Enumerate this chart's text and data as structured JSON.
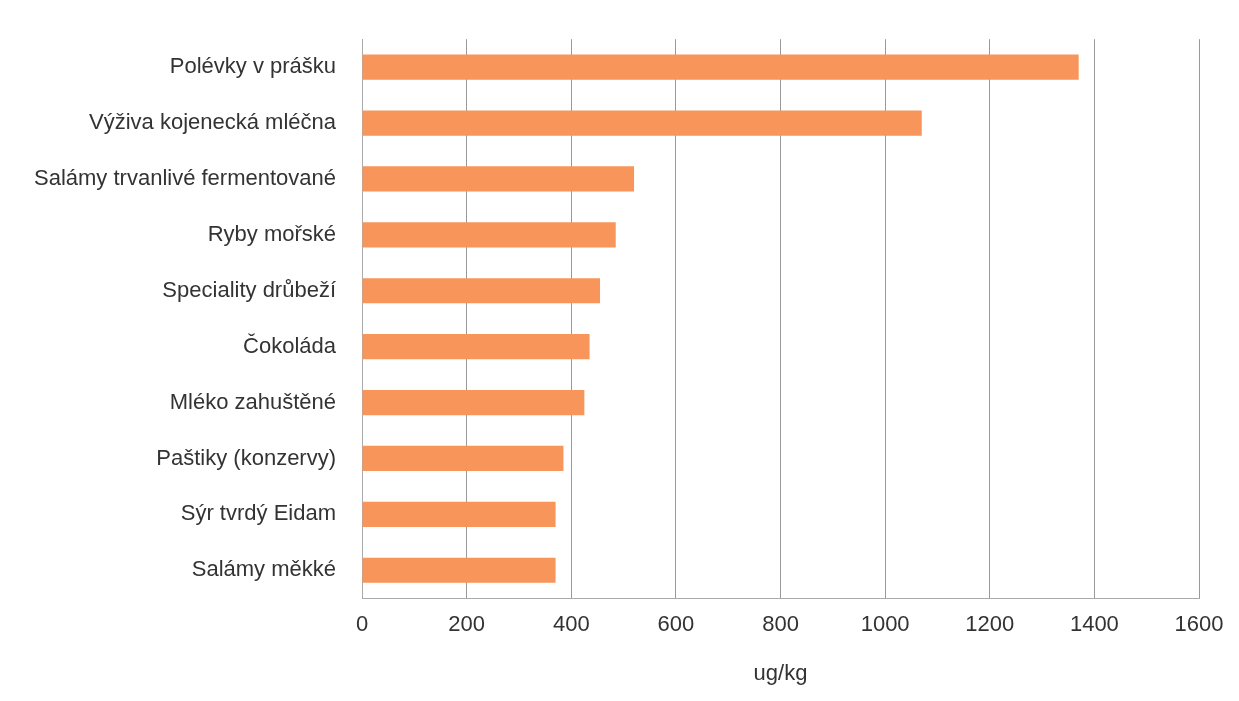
{
  "chart_data": {
    "type": "bar",
    "orientation": "horizontal",
    "xlabel": "ug/kg",
    "categories": [
      "Polévky v prášku",
      "Výživa kojenecká mléčna",
      "Salámy trvanlivé fermentované",
      "Ryby mořské",
      "Speciality drůbeží",
      "Čokoláda",
      "Mléko zahuštěné",
      "Paštiky (konzervy)",
      "Sýr tvrdý Eidam",
      "Salámy měkké"
    ],
    "values": [
      1370,
      1070,
      520,
      485,
      455,
      435,
      425,
      385,
      370,
      370
    ],
    "color": "#f8955a",
    "xlim": [
      0,
      1600
    ],
    "xticks": [
      0,
      200,
      400,
      600,
      800,
      1000,
      1200,
      1400,
      1600
    ],
    "grid": "x",
    "legend": false
  }
}
